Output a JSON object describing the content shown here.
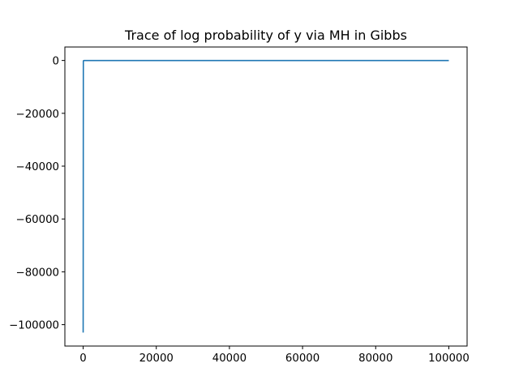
{
  "chart_data": {
    "type": "line",
    "title": "Trace of log probability of y via MH in Gibbs",
    "xlabel": "",
    "ylabel": "",
    "xlim": [
      -5000,
      105000
    ],
    "ylim": [
      -108100,
      5100
    ],
    "x_ticks": [
      0,
      20000,
      40000,
      60000,
      80000,
      100000
    ],
    "x_tick_labels": [
      "0",
      "20000",
      "40000",
      "60000",
      "80000",
      "100000"
    ],
    "y_ticks": [
      0,
      -20000,
      -40000,
      -60000,
      -80000,
      -100000
    ],
    "y_tick_labels": [
      "0",
      "−20000",
      "−40000",
      "−60000",
      "−80000",
      "−100000"
    ],
    "grid": false,
    "series": [
      {
        "color": "#1f77b4",
        "x": [
          0,
          50,
          100,
          200,
          500,
          1000,
          5000,
          20000,
          50000,
          80000,
          100000
        ],
        "y": [
          -103000,
          -300,
          -60,
          -30,
          -20,
          -15,
          -12,
          -10,
          -10,
          -10,
          -10
        ]
      }
    ]
  }
}
